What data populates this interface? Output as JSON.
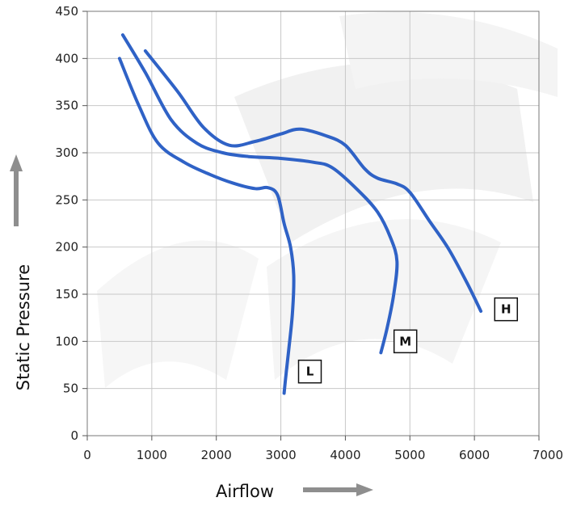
{
  "chart_data": {
    "type": "line",
    "title": "",
    "xlabel": "Airflow",
    "ylabel": "Static Pressure",
    "xlim": [
      0,
      7000
    ],
    "ylim": [
      0,
      450
    ],
    "x_ticks": [
      0,
      1000,
      2000,
      3000,
      4000,
      5000,
      6000,
      7000
    ],
    "y_ticks": [
      0,
      50,
      100,
      150,
      200,
      250,
      300,
      350,
      400,
      450
    ],
    "grid": true,
    "legend": "none",
    "line_color": "#2f62c6",
    "grid_color": "#c8c8c8",
    "arrow_color": "#8e8e8e",
    "series": [
      {
        "label": "L",
        "points": [
          [
            500,
            400
          ],
          [
            800,
            350
          ],
          [
            1100,
            310
          ],
          [
            1500,
            290
          ],
          [
            1900,
            277
          ],
          [
            2250,
            268
          ],
          [
            2600,
            262
          ],
          [
            2800,
            263
          ],
          [
            2950,
            255
          ],
          [
            3050,
            225
          ],
          [
            3150,
            200
          ],
          [
            3200,
            170
          ],
          [
            3180,
            130
          ],
          [
            3120,
            90
          ],
          [
            3080,
            65
          ],
          [
            3050,
            45
          ]
        ]
      },
      {
        "label": "M",
        "points": [
          [
            550,
            425
          ],
          [
            900,
            385
          ],
          [
            1300,
            335
          ],
          [
            1700,
            310
          ],
          [
            2100,
            300
          ],
          [
            2500,
            296
          ],
          [
            3000,
            294
          ],
          [
            3500,
            290
          ],
          [
            3800,
            284
          ],
          [
            4200,
            260
          ],
          [
            4500,
            237
          ],
          [
            4700,
            210
          ],
          [
            4800,
            185
          ],
          [
            4750,
            150
          ],
          [
            4650,
            115
          ],
          [
            4550,
            88
          ]
        ]
      },
      {
        "label": "H",
        "points": [
          [
            900,
            408
          ],
          [
            1400,
            365
          ],
          [
            1800,
            327
          ],
          [
            2200,
            308
          ],
          [
            2600,
            312
          ],
          [
            3000,
            320
          ],
          [
            3300,
            325
          ],
          [
            3700,
            318
          ],
          [
            4000,
            308
          ],
          [
            4300,
            283
          ],
          [
            4500,
            273
          ],
          [
            4800,
            267
          ],
          [
            5000,
            258
          ],
          [
            5300,
            228
          ],
          [
            5600,
            198
          ],
          [
            5900,
            160
          ],
          [
            6100,
            132
          ]
        ]
      }
    ],
    "curve_labels": [
      {
        "text": "L",
        "x": 3450,
        "y": 68
      },
      {
        "text": "M",
        "x": 4930,
        "y": 100
      },
      {
        "text": "H",
        "x": 6490,
        "y": 134
      }
    ]
  }
}
